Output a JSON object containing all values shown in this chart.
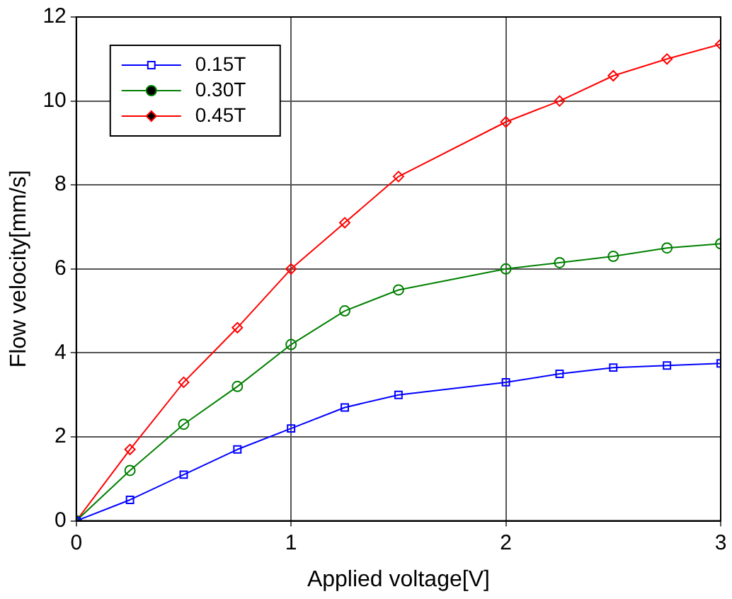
{
  "chart_data": {
    "type": "line",
    "xlabel": "Applied voltage[V]",
    "ylabel": "Flow velocity[mm/s]",
    "x": [
      0,
      0.25,
      0.5,
      0.75,
      1,
      1.25,
      1.5,
      2,
      2.25,
      2.5,
      2.75,
      3
    ],
    "series": [
      {
        "name": "0.15T",
        "color": "#0000ff",
        "marker": "square",
        "values": [
          0,
          0.5,
          1.1,
          1.7,
          2.2,
          2.7,
          3.0,
          3.3,
          3.5,
          3.65,
          3.7,
          3.75
        ]
      },
      {
        "name": "0.30T",
        "color": "#008000",
        "marker": "circle",
        "values": [
          0,
          1.2,
          2.3,
          3.2,
          4.2,
          5.0,
          5.5,
          6.0,
          6.15,
          6.3,
          6.5,
          6.6
        ]
      },
      {
        "name": "0.45T",
        "color": "#ff0000",
        "marker": "diamond",
        "values": [
          0,
          1.7,
          3.3,
          4.6,
          6.0,
          7.1,
          8.2,
          9.5,
          10.0,
          10.6,
          11.0,
          11.35
        ]
      }
    ],
    "xlim": [
      0,
      3
    ],
    "xticks": [
      0,
      1,
      2,
      3
    ],
    "ylim": [
      0,
      12
    ],
    "yticks": [
      0,
      2,
      4,
      6,
      8,
      10,
      12
    ],
    "grid": true,
    "legend": "top left"
  }
}
